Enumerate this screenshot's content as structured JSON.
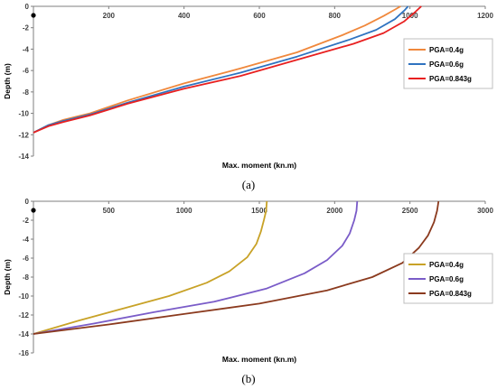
{
  "chart_data": [
    {
      "panel": "(a)",
      "type": "line",
      "xlabel": "Max. moment (kn.m)",
      "ylabel": "Depth (m)",
      "xlim": [
        0,
        1200
      ],
      "ylim": [
        -14,
        0
      ],
      "xticks": [
        0,
        200,
        400,
        600,
        800,
        1000,
        1200
      ],
      "yticks": [
        0,
        -2,
        -4,
        -6,
        -8,
        -10,
        -12,
        -14
      ],
      "x_axis_position": "top",
      "grid": false,
      "legend_position": "right",
      "series": [
        {
          "name": "PGA=0.4g",
          "color": "#f0883c",
          "points": [
            [
              0,
              -11.8
            ],
            [
              40,
              -11.1
            ],
            [
              80,
              -10.6
            ],
            [
              150,
              -10.0
            ],
            [
              250,
              -8.8
            ],
            [
              400,
              -7.2
            ],
            [
              550,
              -5.8
            ],
            [
              700,
              -4.3
            ],
            [
              820,
              -2.7
            ],
            [
              880,
              -1.8
            ],
            [
              930,
              -0.9
            ],
            [
              960,
              -0.3
            ],
            [
              975,
              0
            ]
          ]
        },
        {
          "name": "PGA=0.6g",
          "color": "#2f73c0",
          "points": [
            [
              0,
              -11.8
            ],
            [
              40,
              -11.1
            ],
            [
              80,
              -10.7
            ],
            [
              150,
              -10.1
            ],
            [
              250,
              -9.0
            ],
            [
              400,
              -7.5
            ],
            [
              550,
              -6.2
            ],
            [
              700,
              -4.7
            ],
            [
              840,
              -3.1
            ],
            [
              910,
              -2.2
            ],
            [
              960,
              -1.2
            ],
            [
              985,
              -0.4
            ],
            [
              995,
              0
            ]
          ]
        },
        {
          "name": "PGA=0.843g",
          "color": "#e82020",
          "points": [
            [
              0,
              -11.8
            ],
            [
              40,
              -11.2
            ],
            [
              80,
              -10.8
            ],
            [
              150,
              -10.2
            ],
            [
              250,
              -9.1
            ],
            [
              400,
              -7.7
            ],
            [
              550,
              -6.5
            ],
            [
              700,
              -5.0
            ],
            [
              850,
              -3.5
            ],
            [
              930,
              -2.5
            ],
            [
              985,
              -1.4
            ],
            [
              1015,
              -0.5
            ],
            [
              1030,
              0
            ]
          ]
        }
      ]
    },
    {
      "panel": "(b)",
      "type": "line",
      "xlabel": "Max. moment (kn.m)",
      "ylabel": "Depth (m)",
      "xlim": [
        0,
        3000
      ],
      "ylim": [
        -16,
        0
      ],
      "xticks": [
        0,
        500,
        1000,
        1500,
        2000,
        2500,
        3000
      ],
      "yticks": [
        0,
        -2,
        -4,
        -6,
        -8,
        -10,
        -12,
        -14,
        -16
      ],
      "x_axis_position": "top",
      "grid": false,
      "legend_position": "right",
      "series": [
        {
          "name": "PGA=0.4g",
          "color": "#c8a227",
          "points": [
            [
              0,
              -14
            ],
            [
              300,
              -12.6
            ],
            [
              600,
              -11.3
            ],
            [
              900,
              -10.0
            ],
            [
              1150,
              -8.6
            ],
            [
              1300,
              -7.4
            ],
            [
              1420,
              -5.9
            ],
            [
              1480,
              -4.5
            ],
            [
              1510,
              -3.2
            ],
            [
              1530,
              -2.0
            ],
            [
              1545,
              -1.0
            ],
            [
              1550,
              0
            ]
          ]
        },
        {
          "name": "PGA=0.6g",
          "color": "#7a5cc8",
          "points": [
            [
              0,
              -14
            ],
            [
              400,
              -12.9
            ],
            [
              800,
              -11.7
            ],
            [
              1200,
              -10.6
            ],
            [
              1550,
              -9.2
            ],
            [
              1800,
              -7.6
            ],
            [
              1950,
              -6.2
            ],
            [
              2050,
              -4.7
            ],
            [
              2100,
              -3.4
            ],
            [
              2130,
              -2.0
            ],
            [
              2145,
              -1.0
            ],
            [
              2150,
              0
            ]
          ]
        },
        {
          "name": "PGA=0.843g",
          "color": "#8b3a1e",
          "points": [
            [
              0,
              -14
            ],
            [
              500,
              -13.0
            ],
            [
              1000,
              -11.9
            ],
            [
              1500,
              -10.8
            ],
            [
              1950,
              -9.4
            ],
            [
              2250,
              -8.0
            ],
            [
              2450,
              -6.5
            ],
            [
              2560,
              -4.9
            ],
            [
              2620,
              -3.6
            ],
            [
              2660,
              -2.2
            ],
            [
              2680,
              -1.0
            ],
            [
              2690,
              0
            ]
          ]
        }
      ]
    }
  ],
  "captions": [
    "(a)",
    "(b)"
  ]
}
